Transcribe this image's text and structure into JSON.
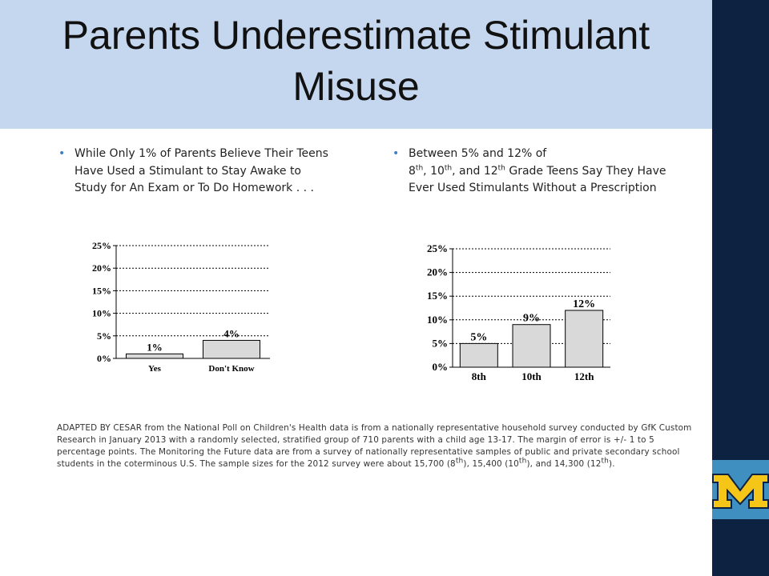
{
  "slide": {
    "title_line1": "Parents Underestimate Stimulant",
    "title_line2": "Misuse",
    "bullet_left": "While Only 1% of Parents Believe Their Teens Have Used a Stimulant to Stay Awake to Study for An Exam or To Do Homework . . .",
    "bullet_right": {
      "prefix": "Between 5% and 12% of",
      "n8": "8",
      "th1": "th",
      "sep1": ", ",
      "n10": "10",
      "th2": "th",
      "sep2": ", and ",
      "n12": "12",
      "th3": "th",
      "rest": " Grade Teens Say They Have Ever Used Stimulants Without a Prescription"
    },
    "bullet_glyph": "•",
    "footnote": {
      "main": "ADAPTED BY CESAR from the National Poll on Children's Health data is from a nationally representative household survey conducted by GfK Custom Research in January 2013 with a randomly selected, stratified group of 710 parents with a child age 13-17. The margin of error is +/- 1 to 5 percentage points. The Monitoring the Future data are from a survey of nationally representative samples of public and private secondary school students in the coterminous U.S. The sample sizes for the 2012 survey were about 15,700 (8",
      "th": "th",
      "p2": "), 15,400 (10",
      "p3": "), and 14,300 (12",
      "end": ")."
    },
    "colors": {
      "title_band": "#c5d7ef",
      "right_bar": "#0d2240",
      "bullet": "#3c7fc7",
      "bar_fill": "#d9d9d9",
      "logo_maize": "#f5c518",
      "logo_blue": "#3f8fc1"
    },
    "logo_icon": "university-block-m-logo",
    "logo_text": "M"
  },
  "chart_data": [
    {
      "type": "bar",
      "categories": [
        "Yes",
        "Don't Know"
      ],
      "values": [
        1,
        4
      ],
      "data_labels": [
        "1%",
        "4%"
      ],
      "yticks": [
        "0%",
        "5%",
        "10%",
        "15%",
        "20%",
        "25%"
      ],
      "ylim": [
        0,
        25
      ],
      "grid": true,
      "legend": "none"
    },
    {
      "type": "bar",
      "categories": [
        "8th",
        "10th",
        "12th"
      ],
      "values": [
        5,
        9,
        12
      ],
      "data_labels": [
        "5%",
        "9%",
        "12%"
      ],
      "yticks": [
        "0%",
        "5%",
        "10%",
        "15%",
        "20%",
        "25%"
      ],
      "ylim": [
        0,
        25
      ],
      "grid": true,
      "legend": "none"
    }
  ]
}
